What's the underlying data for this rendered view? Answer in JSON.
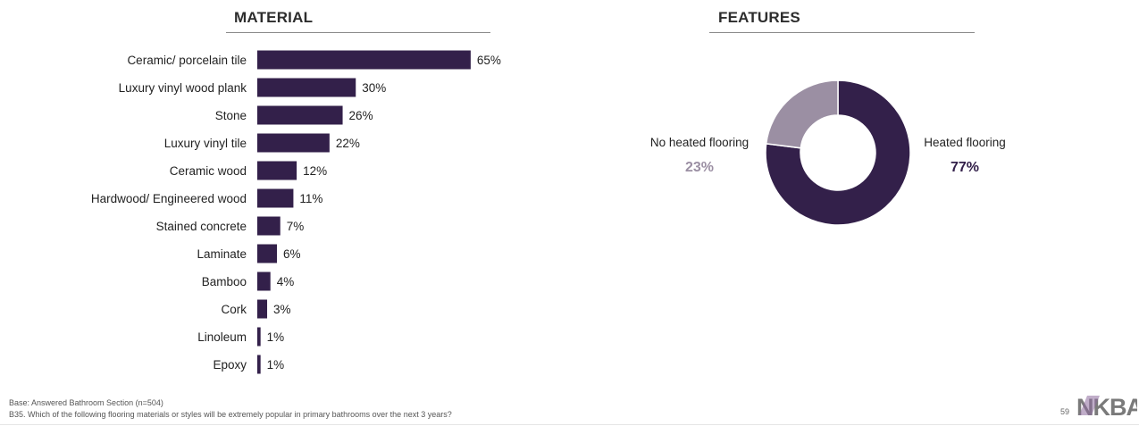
{
  "material_title": "MATERIAL",
  "features_title": "FEATURES",
  "chart_data": [
    {
      "type": "bar",
      "orientation": "horizontal",
      "title": "MATERIAL",
      "categories": [
        "Ceramic/ porcelain tile",
        "Luxury vinyl wood plank",
        "Stone",
        "Luxury vinyl tile",
        "Ceramic wood",
        "Hardwood/ Engineered wood",
        "Stained concrete",
        "Laminate",
        "Bamboo",
        "Cork",
        "Linoleum",
        "Epoxy"
      ],
      "values": [
        65,
        30,
        26,
        22,
        12,
        11,
        7,
        6,
        4,
        3,
        1,
        1
      ],
      "value_labels": [
        "65%",
        "30%",
        "26%",
        "22%",
        "12%",
        "11%",
        "7%",
        "6%",
        "4%",
        "3%",
        "1%",
        "1%"
      ],
      "color": "#33204a",
      "grid": false
    },
    {
      "type": "pie",
      "style": "donut",
      "title": "FEATURES",
      "categories": [
        "Heated flooring",
        "No heated flooring"
      ],
      "values": [
        77,
        23
      ],
      "value_labels": [
        "77%",
        "23%"
      ],
      "colors": [
        "#33204a",
        "#9b8fa3"
      ]
    }
  ],
  "footer": {
    "base": "Base:  Answered Bathroom Section (n=504)",
    "question": "B35.  Which of the following flooring materials or styles will be extremely popular in primary bathrooms over the next 3 years?",
    "page_number": "59",
    "logo_text": "NKBA"
  }
}
